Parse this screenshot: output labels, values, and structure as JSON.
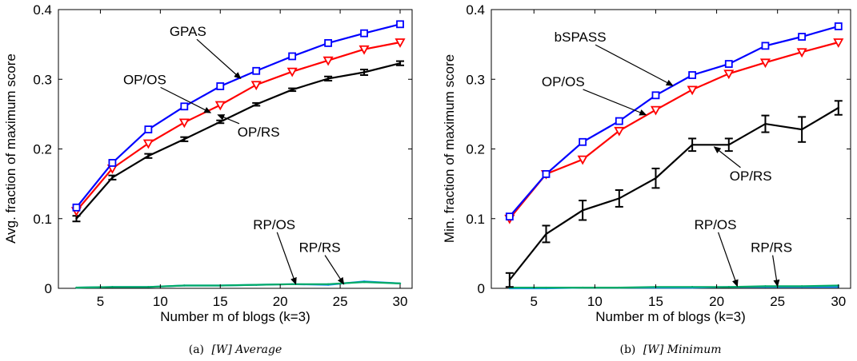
{
  "chart_data": [
    {
      "type": "line",
      "caption_prefix": "(a)",
      "caption_text": "[W] Average",
      "xlabel": "Number m of blogs (k=3)",
      "ylabel": "Avg. fraction of maximum score",
      "xlim": [
        1.5,
        31
      ],
      "ylim": [
        0,
        0.4
      ],
      "xticks": [
        "5",
        "10",
        "15",
        "20",
        "25",
        "30"
      ],
      "yticks": [
        "0",
        "0.1",
        "0.2",
        "0.3",
        "0.4"
      ],
      "grid": false,
      "x": [
        3,
        6,
        9,
        12,
        15,
        18,
        21,
        24,
        27,
        30
      ],
      "series": [
        {
          "name": "GPAS",
          "color": "#0000ff",
          "marker": "square",
          "values": [
            0.116,
            0.18,
            0.228,
            0.261,
            0.29,
            0.312,
            0.333,
            0.352,
            0.366,
            0.379
          ],
          "err": []
        },
        {
          "name": "OP/OS",
          "color": "#ff0000",
          "marker": "triangle-down",
          "values": [
            0.111,
            0.172,
            0.208,
            0.238,
            0.263,
            0.292,
            0.311,
            0.327,
            0.343,
            0.353
          ],
          "err": []
        },
        {
          "name": "OP/RS",
          "color": "#000000",
          "marker": "none",
          "values": [
            0.1,
            0.159,
            0.19,
            0.214,
            0.239,
            0.264,
            0.285,
            0.301,
            0.31,
            0.323
          ],
          "err": [
            0.004,
            0.003,
            0.003,
            0.003,
            0.002,
            0.002,
            0.002,
            0.003,
            0.004,
            0.003
          ]
        },
        {
          "name": "RP/OS",
          "color": "#00aa66",
          "marker": "none",
          "values": [
            0.001,
            0.002,
            0.002,
            0.004,
            0.004,
            0.005,
            0.006,
            0.006,
            0.009,
            0.007
          ],
          "err": []
        },
        {
          "name": "RP/RS",
          "color": "#1e90ff",
          "marker": "none",
          "values": [
            0.001,
            0.002,
            0.002,
            0.004,
            0.004,
            0.005,
            0.006,
            0.005,
            0.01,
            0.007
          ],
          "err": []
        }
      ],
      "annotations": [
        {
          "text": "GPAS",
          "label_at": [
            12.3,
            0.362
          ],
          "arrow_to": [
            16.7,
            0.301
          ]
        },
        {
          "text": "OP/OS",
          "label_at": [
            8.7,
            0.293
          ],
          "arrow_to": [
            14.2,
            0.252
          ]
        },
        {
          "text": "OP/RS",
          "label_at": [
            18.2,
            0.218
          ],
          "arrow_to": [
            14.8,
            0.249
          ]
        },
        {
          "text": "RP/OS",
          "label_at": [
            19.5,
            0.085
          ],
          "arrow_to": [
            21.3,
            0.006
          ]
        },
        {
          "text": "RP/RS",
          "label_at": [
            23.3,
            0.052
          ],
          "arrow_to": [
            25.3,
            0.006
          ]
        }
      ]
    },
    {
      "type": "line",
      "caption_prefix": "(b)",
      "caption_text": "[W] Minimum",
      "xlabel": "Number m of blogs (k=3)",
      "ylabel": "Min. fraction of maximum score",
      "xlim": [
        1.5,
        31
      ],
      "ylim": [
        0,
        0.4
      ],
      "xticks": [
        "5",
        "10",
        "15",
        "20",
        "25",
        "30"
      ],
      "yticks": [
        "0",
        "0.1",
        "0.2",
        "0.3",
        "0.4"
      ],
      "grid": false,
      "x": [
        3,
        6,
        9,
        12,
        15,
        18,
        21,
        24,
        27,
        30
      ],
      "series": [
        {
          "name": "bSPASS",
          "color": "#0000ff",
          "marker": "square",
          "values": [
            0.103,
            0.164,
            0.21,
            0.24,
            0.277,
            0.306,
            0.322,
            0.348,
            0.361,
            0.376
          ],
          "err": []
        },
        {
          "name": "OP/OS",
          "color": "#ff0000",
          "marker": "triangle-down",
          "values": [
            0.1,
            0.164,
            0.185,
            0.226,
            0.256,
            0.285,
            0.308,
            0.324,
            0.339,
            0.353
          ],
          "err": []
        },
        {
          "name": "OP/RS",
          "color": "#000000",
          "marker": "none",
          "values": [
            0.012,
            0.078,
            0.112,
            0.129,
            0.158,
            0.206,
            0.206,
            0.236,
            0.228,
            0.259
          ],
          "err": [
            0.01,
            0.012,
            0.014,
            0.012,
            0.014,
            0.009,
            0.009,
            0.012,
            0.018,
            0.01
          ]
        },
        {
          "name": "RP/OS",
          "color": "#00aa66",
          "marker": "none",
          "values": [
            0.001,
            0.001,
            0.001,
            0.001,
            0.002,
            0.002,
            0.002,
            0.003,
            0.003,
            0.004
          ],
          "err": []
        },
        {
          "name": "RP/RS",
          "color": "#1e90ff",
          "marker": "none",
          "values": [
            0.0,
            0.0,
            0.001,
            0.001,
            0.001,
            0.001,
            0.002,
            0.002,
            0.002,
            0.002
          ],
          "err": []
        }
      ],
      "annotations": [
        {
          "text": "bSPASS",
          "label_at": [
            8.8,
            0.354
          ],
          "arrow_to": [
            16.4,
            0.291
          ]
        },
        {
          "text": "OP/OS",
          "label_at": [
            7.4,
            0.29
          ],
          "arrow_to": [
            14.2,
            0.249
          ]
        },
        {
          "text": "OP/RS",
          "label_at": [
            22.8,
            0.155
          ],
          "arrow_to": [
            19.8,
            0.203
          ]
        },
        {
          "text": "RP/OS",
          "label_at": [
            19.9,
            0.085
          ],
          "arrow_to": [
            21.7,
            0.003
          ]
        },
        {
          "text": "RP/RS",
          "label_at": [
            24.5,
            0.052
          ],
          "arrow_to": [
            25.0,
            0.003
          ]
        }
      ]
    }
  ]
}
